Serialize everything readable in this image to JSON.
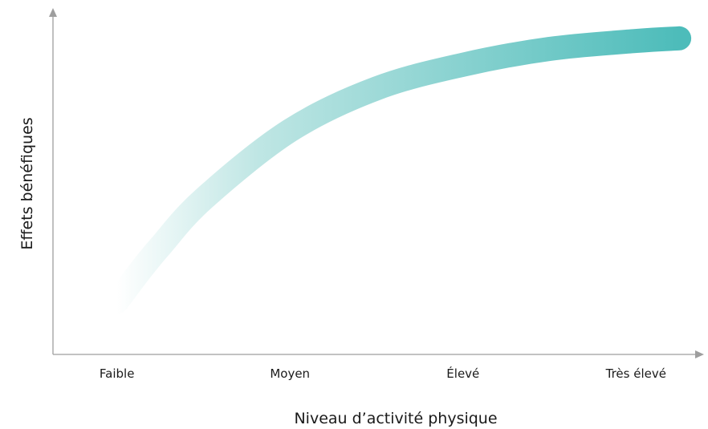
{
  "chart_data": {
    "type": "line",
    "xlabel": "Niveau d’activité physique",
    "ylabel": "Effets bénéfiques",
    "categories": [
      "Faible",
      "Moyen",
      "Élevé",
      "Très élevé"
    ],
    "series": [
      {
        "x": [
          0,
          0.125,
          0.25,
          0.5,
          1,
          1.5,
          2,
          2.5,
          3,
          3.25
        ],
        "values": [
          0.0,
          0.11,
          0.21,
          0.39,
          0.65,
          0.81,
          0.9,
          0.96,
          0.99,
          1.0
        ]
      }
    ],
    "xlim": [
      -0.37,
      3.37
    ],
    "ylim": [
      -0.2,
      1.1
    ],
    "colors": {
      "start": "#ffffff",
      "mid": "#9fdad8",
      "end": "#4dbcba",
      "axis": "#9e9e9e"
    },
    "grid": false,
    "legend": "none"
  }
}
